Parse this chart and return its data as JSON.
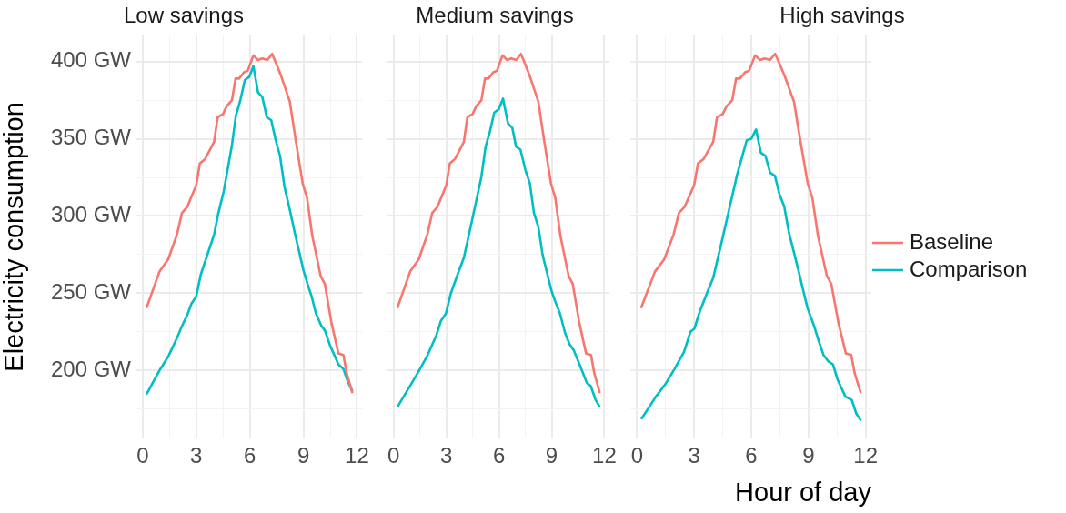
{
  "chart_data": [
    {
      "type": "line",
      "title": "Low savings",
      "ylabel": "Electricity consumption",
      "xlim": [
        -0.35,
        12.3
      ],
      "ylim": [
        156,
        417
      ],
      "xticks": [
        0,
        {
          "value": 1.5,
          "label": null
        },
        3,
        {
          "value": 4.5,
          "label": null
        },
        6,
        {
          "value": 7.5,
          "label": null
        },
        9,
        {
          "value": 10.5,
          "label": null
        },
        12
      ],
      "yticks": [
        {
          "value": 175,
          "label": null
        },
        {
          "value": 200,
          "label": "200 GW"
        },
        {
          "value": 225,
          "label": null
        },
        {
          "value": 250,
          "label": "250 GW"
        },
        {
          "value": 275,
          "label": null
        },
        {
          "value": 300,
          "label": "300 GW"
        },
        {
          "value": 325,
          "label": null
        },
        {
          "value": 350,
          "label": "350 GW"
        },
        {
          "value": 375,
          "label": null
        },
        {
          "value": 400,
          "label": "400 GW"
        }
      ],
      "grid": true,
      "legend": false,
      "series": [
        {
          "color": "#f8766d",
          "x": [
            0.23,
            0.94,
            1.43,
            1.92,
            2.2,
            2.5,
            3.0,
            3.2,
            3.5,
            4.0,
            4.2,
            4.5,
            4.7,
            5.0,
            5.2,
            5.4,
            5.67,
            5.88,
            6.2,
            6.46,
            6.7,
            6.98,
            7.25,
            7.5,
            7.74,
            8.24,
            8.57,
            8.96,
            9.2,
            9.5,
            9.97,
            10.2,
            10.57,
            10.96,
            11.24,
            11.43,
            11.73
          ],
          "values": [
            241,
            264,
            272,
            288,
            302,
            306,
            320,
            334,
            337,
            348,
            364,
            366,
            371,
            375,
            389,
            389,
            393,
            394,
            404,
            401,
            402,
            401,
            405,
            398,
            391,
            374,
            349,
            321,
            312,
            287,
            261,
            256,
            231,
            211,
            210,
            198,
            186
          ]
        },
        {
          "color": "#00bfc4",
          "x": [
            0.23,
            0.94,
            1.43,
            1.92,
            2.17,
            2.5,
            2.72,
            3.0,
            3.25,
            3.74,
            4.0,
            4.24,
            4.54,
            5.0,
            5.22,
            5.47,
            5.72,
            5.96,
            6.2,
            6.46,
            6.7,
            6.95,
            7.2,
            7.45,
            7.69,
            7.94,
            8.24,
            8.52,
            8.76,
            9.0,
            9.23,
            9.46,
            9.7,
            10.0,
            10.2,
            10.5,
            10.96,
            11.24,
            11.48,
            11.73
          ],
          "values": [
            185,
            200,
            209,
            221,
            228,
            236,
            243,
            248,
            262,
            279,
            288,
            302,
            316,
            346,
            365,
            375,
            388,
            390,
            397,
            380,
            377,
            364,
            362,
            349,
            339,
            319,
            304,
            289,
            277,
            265,
            256,
            248,
            237,
            229,
            226,
            216,
            204,
            201,
            193,
            187
          ]
        }
      ]
    },
    {
      "type": "line",
      "title": "Medium savings",
      "tick_labels": "x",
      "xlim": [
        -0.35,
        12.3
      ],
      "ylim": [
        156,
        417
      ],
      "xticks": [
        0,
        {
          "value": 1.5,
          "label": null
        },
        3,
        {
          "value": 4.5,
          "label": null
        },
        6,
        {
          "value": 7.5,
          "label": null
        },
        9,
        {
          "value": 10.5,
          "label": null
        },
        12
      ],
      "yticks": [
        {
          "value": 175,
          "label": null
        },
        200,
        {
          "value": 225,
          "label": null
        },
        250,
        {
          "value": 275,
          "label": null
        },
        300,
        {
          "value": 325,
          "label": null
        },
        350,
        {
          "value": 375,
          "label": null
        },
        400
      ],
      "grid": true,
      "legend": false,
      "series": [
        {
          "color": "#f8766d",
          "x": [
            0.23,
            0.94,
            1.43,
            1.92,
            2.2,
            2.5,
            3.0,
            3.2,
            3.5,
            4.0,
            4.2,
            4.5,
            4.7,
            5.0,
            5.2,
            5.4,
            5.67,
            5.88,
            6.2,
            6.46,
            6.7,
            6.98,
            7.25,
            7.5,
            7.74,
            8.24,
            8.57,
            8.96,
            9.2,
            9.5,
            9.97,
            10.2,
            10.57,
            10.96,
            11.24,
            11.43,
            11.73
          ],
          "values": [
            241,
            264,
            272,
            288,
            302,
            306,
            320,
            334,
            337,
            348,
            364,
            366,
            371,
            375,
            389,
            389,
            393,
            394,
            404,
            401,
            402,
            401,
            405,
            398,
            391,
            374,
            349,
            321,
            312,
            287,
            261,
            256,
            231,
            211,
            210,
            198,
            186
          ]
        },
        {
          "color": "#00bfc4",
          "x": [
            0.25,
            1.04,
            1.45,
            1.94,
            2.44,
            2.69,
            2.98,
            3.26,
            3.67,
            4.0,
            4.5,
            4.99,
            5.24,
            5.49,
            5.73,
            5.98,
            6.23,
            6.51,
            6.76,
            6.97,
            7.22,
            7.5,
            7.76,
            7.99,
            8.24,
            8.48,
            8.98,
            9.19,
            9.47,
            9.77,
            10.02,
            10.26,
            10.51,
            11.0,
            11.22,
            11.5,
            11.71
          ],
          "values": [
            177,
            192,
            200,
            210,
            223,
            232,
            237,
            250,
            263,
            273,
            299,
            325,
            345,
            355,
            367,
            369,
            376,
            360,
            357,
            345,
            343,
            330,
            321,
            302,
            293,
            275,
            252,
            245,
            237,
            224,
            217,
            213,
            206,
            192,
            190,
            181,
            177
          ]
        }
      ]
    },
    {
      "type": "line",
      "title": "High savings",
      "xlabel": "Hour of day",
      "tick_labels": "x",
      "xlim": [
        -0.35,
        12.3
      ],
      "ylim": [
        156,
        417
      ],
      "xticks": [
        0,
        {
          "value": 1.5,
          "label": null
        },
        3,
        {
          "value": 4.5,
          "label": null
        },
        6,
        {
          "value": 7.5,
          "label": null
        },
        9,
        {
          "value": 10.5,
          "label": null
        },
        12
      ],
      "yticks": [
        {
          "value": 175,
          "label": null
        },
        200,
        {
          "value": 225,
          "label": null
        },
        250,
        {
          "value": 275,
          "label": null
        },
        300,
        {
          "value": 325,
          "label": null
        },
        350,
        {
          "value": 375,
          "label": null
        },
        400
      ],
      "grid": true,
      "legend": "right",
      "series": [
        {
          "name": "Baseline",
          "color": "#f8766d",
          "x": [
            0.23,
            0.94,
            1.43,
            1.92,
            2.2,
            2.5,
            3.0,
            3.2,
            3.5,
            4.0,
            4.2,
            4.5,
            4.7,
            5.0,
            5.2,
            5.4,
            5.67,
            5.88,
            6.2,
            6.46,
            6.7,
            6.98,
            7.25,
            7.5,
            7.74,
            8.24,
            8.57,
            8.96,
            9.2,
            9.5,
            9.97,
            10.2,
            10.57,
            10.96,
            11.24,
            11.43,
            11.73
          ],
          "values": [
            241,
            264,
            272,
            288,
            302,
            306,
            320,
            334,
            337,
            348,
            364,
            366,
            371,
            375,
            389,
            389,
            393,
            394,
            404,
            401,
            402,
            401,
            405,
            398,
            391,
            374,
            349,
            321,
            312,
            287,
            261,
            256,
            231,
            211,
            210,
            198,
            186
          ]
        },
        {
          "name": "Comparison",
          "color": "#00bfc4",
          "x": [
            0.25,
            0.99,
            1.48,
            1.97,
            2.47,
            2.8,
            3.01,
            3.29,
            3.7,
            4.0,
            4.44,
            4.85,
            5.26,
            5.51,
            5.76,
            6.0,
            6.25,
            6.5,
            6.74,
            6.99,
            7.24,
            7.48,
            7.73,
            7.98,
            8.47,
            8.72,
            8.96,
            9.29,
            9.54,
            9.79,
            10.03,
            10.28,
            10.53,
            10.94,
            11.27,
            11.51,
            11.73
          ],
          "values": [
            169,
            183,
            191,
            201,
            212,
            225,
            227,
            238,
            251,
            260,
            283,
            305,
            327,
            338,
            349,
            350,
            356,
            341,
            339,
            328,
            326,
            314,
            306,
            289,
            265,
            252,
            240,
            229,
            219,
            210,
            206,
            204,
            194,
            183,
            181,
            172,
            168
          ]
        }
      ]
    }
  ]
}
